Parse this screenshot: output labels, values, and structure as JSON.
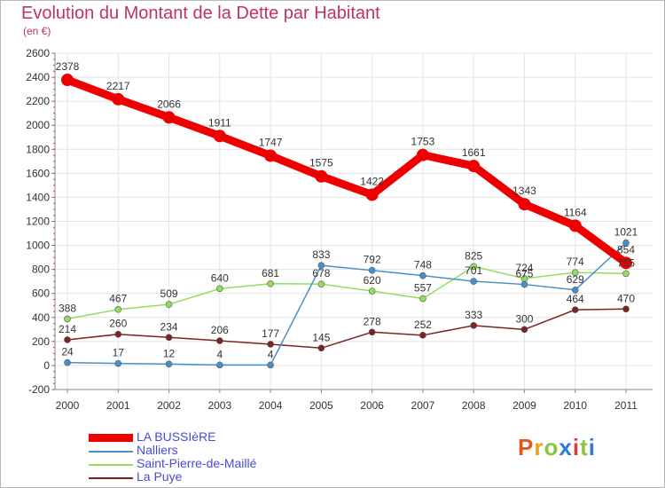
{
  "title": "Evolution du Montant de la Dette par Habitant",
  "subtitle": "(en €)",
  "logo": {
    "text": "Proxiti",
    "colors": [
      "#e05a1e",
      "#e8a21c",
      "#8bc43f",
      "#2e7bd6",
      "#e03a3a",
      "#8bc43f",
      "#2e7bd6"
    ]
  },
  "chart_data": {
    "type": "line",
    "x": [
      "2000",
      "2001",
      "2002",
      "2003",
      "2004",
      "2005",
      "2006",
      "2007",
      "2008",
      "2009",
      "2010",
      "2011"
    ],
    "ylim": [
      -200,
      2600
    ],
    "yticks": [
      -200,
      0,
      200,
      400,
      600,
      800,
      1000,
      1200,
      1400,
      1600,
      1800,
      2000,
      2200,
      2400,
      2600
    ],
    "grid": true,
    "series": [
      {
        "name": "LA BUSSIèRE",
        "color": "#ee0000",
        "width": 9,
        "values": [
          2378,
          2217,
          2066,
          1911,
          1747,
          1575,
          1422,
          1753,
          1661,
          1343,
          1164,
          854
        ],
        "labels": [
          "2378",
          "2217",
          "2066",
          "1911",
          "1747",
          "1575",
          "1422",
          "1753",
          "1661",
          "1343",
          "1164",
          "854"
        ]
      },
      {
        "name": "Nalliers",
        "color": "#4a90c8",
        "width": 1.5,
        "values": [
          24,
          17,
          12,
          4,
          4,
          833,
          792,
          748,
          701,
          675,
          629,
          1021
        ],
        "labels": [
          "24",
          "17",
          "12",
          "4",
          "4",
          "833",
          "792",
          "748",
          "701",
          "675",
          "629",
          "1021"
        ]
      },
      {
        "name": "Saint-Pierre-de-Maillé",
        "color": "#90dd60",
        "width": 1.5,
        "values": [
          388,
          467,
          509,
          640,
          681,
          678,
          620,
          557,
          825,
          724,
          774,
          765
        ],
        "labels": [
          "388",
          "467",
          "509",
          "640",
          "681",
          "678",
          "620",
          "557",
          "825",
          "724",
          "774",
          "765"
        ]
      },
      {
        "name": "La Puye",
        "color": "#7a2424",
        "width": 1.5,
        "values": [
          214,
          260,
          234,
          206,
          177,
          145,
          278,
          252,
          333,
          300,
          464,
          470
        ],
        "labels": [
          "214",
          "260",
          "234",
          "206",
          "177",
          "145",
          "278",
          "252",
          "333",
          "300",
          "464",
          "470"
        ]
      }
    ]
  }
}
